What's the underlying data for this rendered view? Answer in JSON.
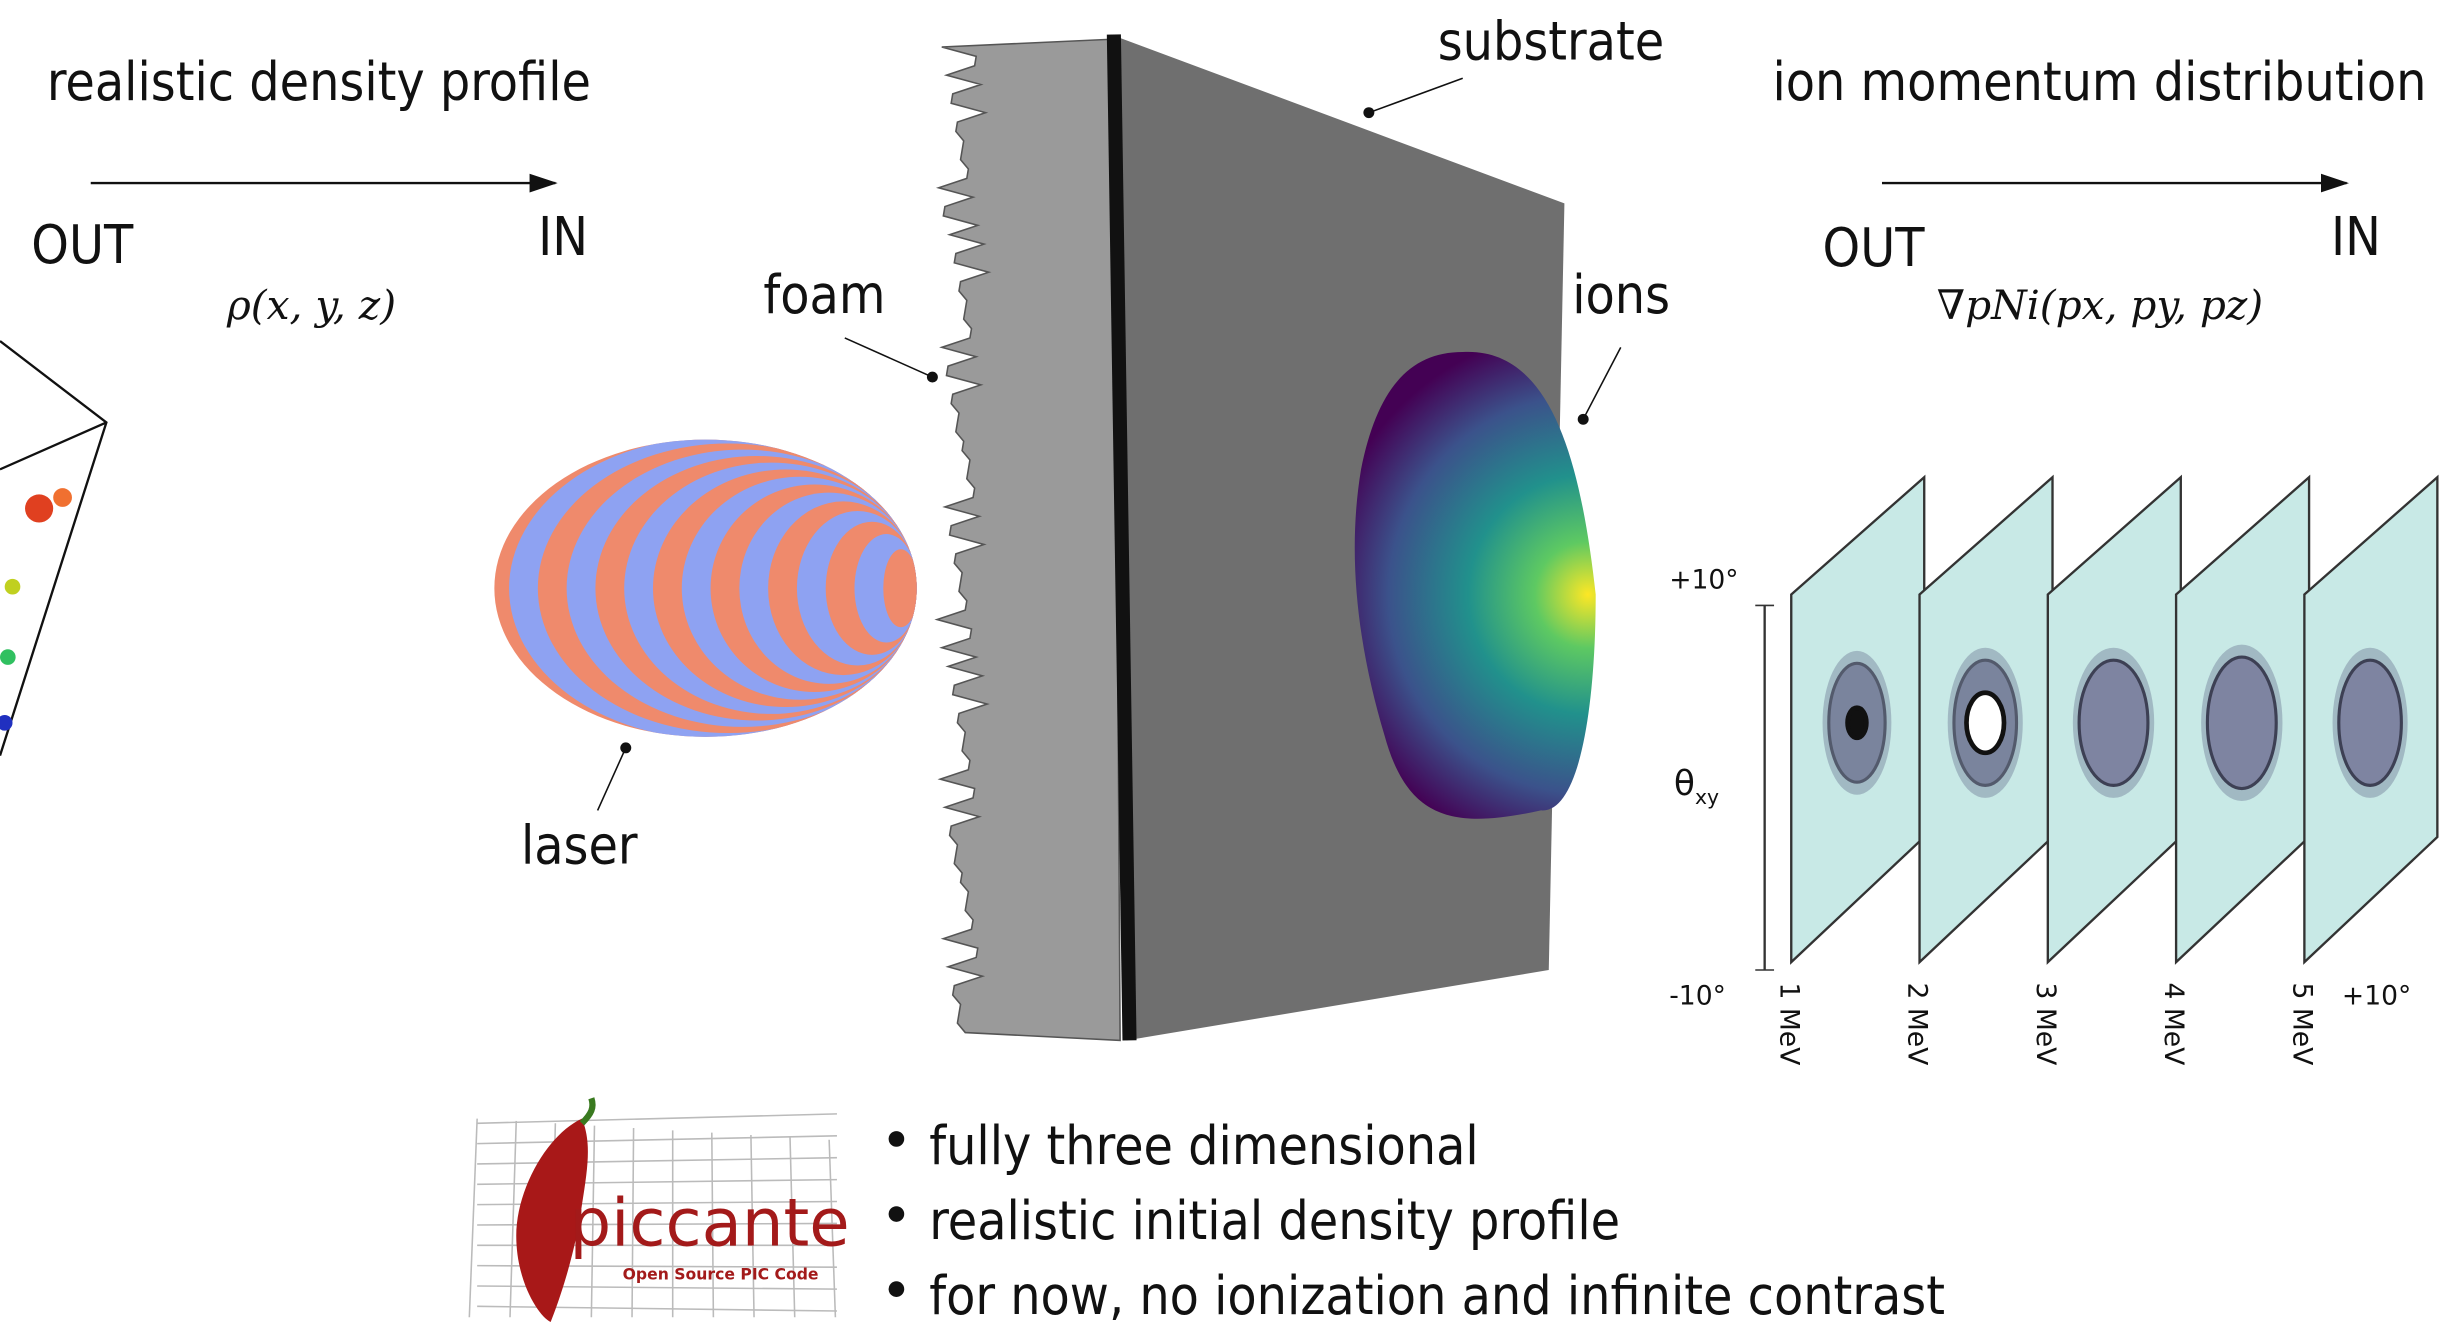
{
  "left": {
    "title": "realistic density profile",
    "out": "OUT",
    "in": "IN",
    "formula": "ρ(x, y, z)"
  },
  "center": {
    "foam": "foam",
    "substrate": "substrate",
    "ions": "ions",
    "laser": "laser"
  },
  "right": {
    "title": "ion momentum distribution",
    "out": "OUT",
    "in": "IN",
    "formula": "∇pNi(px, py, pz)",
    "axis_top": "+10°",
    "axis_symbol": "θ",
    "axis_subscript": "xy",
    "axis_bottom": "-10°",
    "energies": [
      "1 MeV",
      "2 MeV",
      "3 MeV",
      "4 MeV",
      "5 MeV"
    ],
    "axis_right": "+10°"
  },
  "logo": {
    "name": "piccante",
    "tagline": "Open Source PIC Code"
  },
  "bullets": [
    "fully three dimensional",
    "realistic initial density profile",
    "for now, no ionization and infinite contrast"
  ]
}
